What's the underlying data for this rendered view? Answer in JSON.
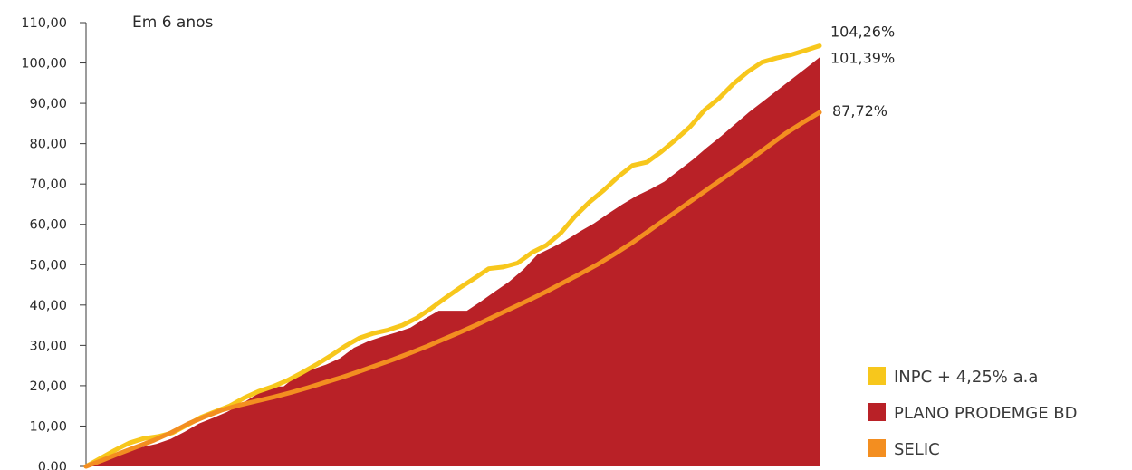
{
  "chart_data": {
    "type": "area",
    "title": "Em 6 anos",
    "xlabel": "",
    "ylabel": "",
    "ylim": [
      0,
      110
    ],
    "yticks": [
      "0,00",
      "10,00",
      "20,00",
      "30,00",
      "40,00",
      "50,00",
      "60,00",
      "70,00",
      "80,00",
      "90,00",
      "100,00",
      "110,00"
    ],
    "grid": false,
    "legend_position": "bottom-right",
    "series": [
      {
        "name": "PLANO PRODEMGE BD",
        "kind": "area",
        "color": "#b92127",
        "end_label": "101,39%",
        "values": [
          0,
          1.3,
          2.6,
          3.8,
          4.8,
          5.6,
          6.8,
          8.6,
          10.6,
          12.0,
          13.5,
          15.5,
          17.6,
          19.8,
          19.8,
          22.6,
          24.0,
          25.2,
          26.8,
          29.4,
          31.0,
          32.2,
          33.2,
          34.4,
          36.6,
          38.6,
          38.6,
          38.6,
          40.9,
          43.4,
          45.8,
          48.8,
          52.5,
          54.2,
          56.0,
          58.2,
          60.2,
          62.6,
          64.9,
          67.0,
          68.7,
          70.6,
          73.3,
          76.0,
          79.0,
          81.8,
          84.8,
          87.8,
          90.5,
          93.2,
          95.9,
          98.6,
          101.39
        ]
      },
      {
        "name": "INPC + 4,25% a.a",
        "kind": "line",
        "color": "#f7c71c",
        "end_label": "104,26%",
        "values": [
          0,
          2.0,
          4.0,
          5.8,
          6.9,
          7.4,
          8.3,
          10.2,
          12.2,
          13.6,
          15.0,
          17.0,
          18.6,
          19.8,
          21.3,
          23.2,
          25.2,
          27.4,
          29.8,
          31.8,
          33.0,
          33.8,
          35.0,
          36.8,
          39.2,
          41.8,
          44.3,
          46.6,
          49.0,
          49.4,
          50.4,
          53.0,
          54.8,
          57.8,
          62.0,
          65.5,
          68.5,
          71.8,
          74.6,
          75.4,
          78.0,
          81.0,
          84.2,
          88.3,
          91.2,
          94.8,
          97.8,
          100.2,
          101.2,
          102.0,
          103.1,
          104.26
        ]
      },
      {
        "name": "SELIC",
        "kind": "line",
        "color": "#f38e20",
        "end_label": "87,72%",
        "values": [
          0,
          1.6,
          3.3,
          4.9,
          6.5,
          8.4,
          10.6,
          12.4,
          14.0,
          15.2,
          16.2,
          17.2,
          18.3,
          19.5,
          20.8,
          22.1,
          23.5,
          25.0,
          26.5,
          28.1,
          29.8,
          31.6,
          33.4,
          35.3,
          37.3,
          39.3,
          41.3,
          43.4,
          45.6,
          47.8,
          50.1,
          52.7,
          55.4,
          58.4,
          61.4,
          64.4,
          67.4,
          70.4,
          73.3,
          76.3,
          79.4,
          82.5,
          85.2,
          87.72
        ]
      }
    ]
  }
}
